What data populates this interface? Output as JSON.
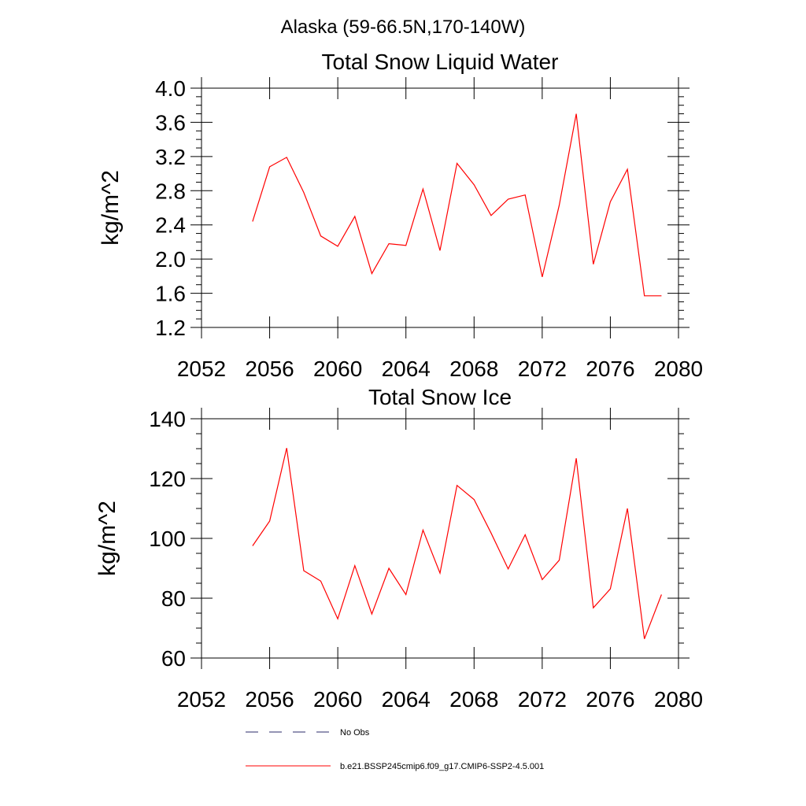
{
  "figure": {
    "region_title": "Alaska (59-66.5N,170-140W)"
  },
  "legend": {
    "placement": "bottom",
    "entries": [
      {
        "label": "No Obs",
        "color": "#2a2a6a",
        "style": "dashed"
      },
      {
        "label": "b.e21.BSSP245cmip6.f09_g17.CMIP6-SSP2-4.5.001",
        "color": "#ff0000",
        "style": "solid"
      }
    ]
  },
  "chart_data": [
    {
      "type": "line",
      "title": "Total Snow Liquid Water",
      "xlabel": "",
      "ylabel": "kg/m^2",
      "xlim": [
        2052,
        2080
      ],
      "ylim": [
        1.2,
        4.0
      ],
      "x_ticks": [
        2052,
        2056,
        2060,
        2064,
        2068,
        2072,
        2076,
        2080
      ],
      "x_tick_labels": [
        "2052",
        "2056",
        "2060",
        "2064",
        "2068",
        "2072",
        "2076",
        "2080"
      ],
      "y_ticks": [
        1.2,
        1.6,
        2.0,
        2.4,
        2.8,
        3.2,
        3.6,
        4.0
      ],
      "y_tick_labels": [
        "1.2",
        "1.6",
        "2.0",
        "2.4",
        "2.8",
        "3.2",
        "3.6",
        "4.0"
      ],
      "grid": false,
      "series": [
        {
          "name": "b.e21.BSSP245cmip6.f09_g17.CMIP6-SSP2-4.5.001",
          "color": "#ff0000",
          "x": [
            2055,
            2056,
            2057,
            2058,
            2059,
            2060,
            2061,
            2062,
            2063,
            2064,
            2065,
            2066,
            2067,
            2068,
            2069,
            2070,
            2071,
            2072,
            2073,
            2074,
            2075,
            2076,
            2077,
            2078,
            2079
          ],
          "y": [
            2.44,
            3.08,
            3.19,
            2.78,
            2.27,
            2.15,
            2.5,
            1.83,
            2.18,
            2.16,
            2.82,
            2.1,
            3.12,
            2.87,
            2.51,
            2.7,
            2.75,
            1.79,
            2.63,
            3.7,
            1.94,
            2.67,
            3.05,
            1.57,
            1.57
          ]
        }
      ]
    },
    {
      "type": "line",
      "title": "Total Snow Ice",
      "xlabel": "",
      "ylabel": "kg/m^2",
      "xlim": [
        2052,
        2080
      ],
      "ylim": [
        60,
        140
      ],
      "x_ticks": [
        2052,
        2056,
        2060,
        2064,
        2068,
        2072,
        2076,
        2080
      ],
      "x_tick_labels": [
        "2052",
        "2056",
        "2060",
        "2064",
        "2068",
        "2072",
        "2076",
        "2080"
      ],
      "y_ticks": [
        60,
        80,
        100,
        120,
        140
      ],
      "y_tick_labels": [
        "60",
        "80",
        "100",
        "120",
        "140"
      ],
      "grid": false,
      "series": [
        {
          "name": "b.e21.BSSP245cmip6.f09_g17.CMIP6-SSP2-4.5.001",
          "color": "#ff0000",
          "x": [
            2055,
            2056,
            2057,
            2058,
            2059,
            2060,
            2061,
            2062,
            2063,
            2064,
            2065,
            2066,
            2067,
            2068,
            2069,
            2070,
            2071,
            2072,
            2073,
            2074,
            2075,
            2076,
            2077,
            2078,
            2079
          ],
          "y": [
            97.5,
            105.8,
            130.2,
            89.2,
            85.7,
            73.1,
            90.9,
            74.7,
            90.0,
            81.2,
            102.8,
            88.4,
            117.7,
            113.0,
            101.8,
            89.8,
            101.2,
            86.2,
            92.7,
            126.8,
            76.8,
            83.1,
            110.0,
            66.4,
            81.2
          ]
        }
      ]
    }
  ]
}
